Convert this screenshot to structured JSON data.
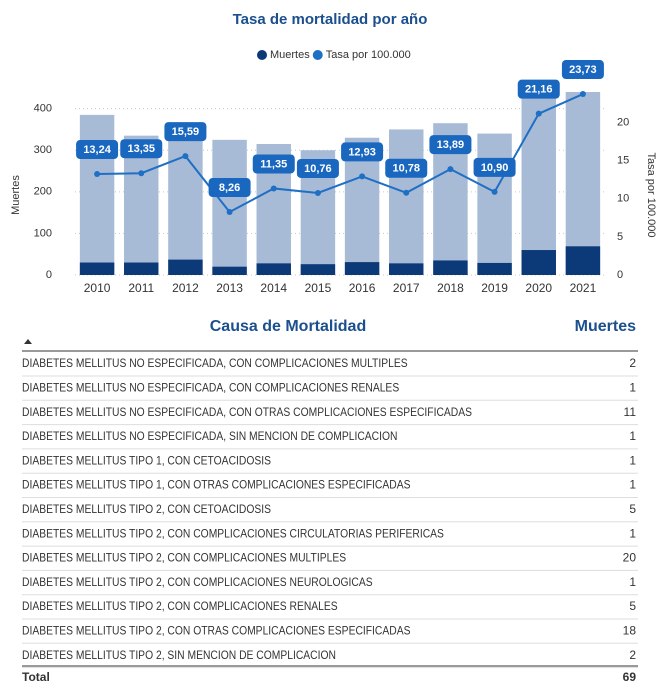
{
  "chart_data": {
    "type": "bar_line",
    "title": "Tasa de mortalidad por año",
    "categories": [
      "2010",
      "2011",
      "2012",
      "2013",
      "2014",
      "2015",
      "2016",
      "2017",
      "2018",
      "2019",
      "2020",
      "2021"
    ],
    "series": [
      {
        "color": "#a7bbd6",
        "values": [
          385,
          335,
          330,
          325,
          315,
          300,
          330,
          350,
          365,
          340,
          440,
          440
        ]
      },
      {
        "name": "Muertes",
        "color": "#0c3a78",
        "values": [
          30,
          30,
          37,
          20,
          28,
          26,
          31,
          28,
          35,
          29,
          60,
          69
        ]
      },
      {
        "name": "Tasa por 100.000",
        "color": "#1f6fc5",
        "axis": "y2",
        "values": [
          13.24,
          13.35,
          15.59,
          8.26,
          11.35,
          10.76,
          12.93,
          10.78,
          13.89,
          10.9,
          21.16,
          23.73
        ],
        "value_labels": [
          "13,24",
          "13,35",
          "15,59",
          "8,26",
          "11,35",
          "10,76",
          "12,93",
          "10,78",
          "13,89",
          "10,90",
          "21,16",
          "23,73"
        ]
      }
    ],
    "ylabel": "Muertes",
    "y2label": "Tasa por 100.000",
    "ylim": [
      0,
      440
    ],
    "yticks": [
      0,
      100,
      200,
      300,
      400
    ],
    "y2lim": [
      0,
      24
    ],
    "y2ticks": [
      0,
      5,
      10,
      15,
      20
    ],
    "grid": true
  },
  "table": {
    "header": [
      "Causa de Mortalidad",
      "Muertes"
    ],
    "rows": [
      [
        "DIABETES MELLITUS NO ESPECIFICADA, CON COMPLICACIONES MULTIPLES",
        "2"
      ],
      [
        "DIABETES MELLITUS NO ESPECIFICADA, CON COMPLICACIONES RENALES",
        "1"
      ],
      [
        "DIABETES MELLITUS NO ESPECIFICADA, CON OTRAS COMPLICACIONES ESPECIFICADAS",
        "11"
      ],
      [
        "DIABETES MELLITUS NO ESPECIFICADA, SIN MENCION DE COMPLICACION",
        "1"
      ],
      [
        "DIABETES MELLITUS TIPO 1, CON CETOACIDOSIS",
        "1"
      ],
      [
        "DIABETES MELLITUS TIPO 1, CON OTRAS COMPLICACIONES ESPECIFICADAS",
        "1"
      ],
      [
        "DIABETES MELLITUS TIPO 2, CON CETOACIDOSIS",
        "5"
      ],
      [
        "DIABETES MELLITUS TIPO 2, CON COMPLICACIONES CIRCULATORIAS PERIFERICAS",
        "1"
      ],
      [
        "DIABETES MELLITUS TIPO 2, CON COMPLICACIONES MULTIPLES",
        "20"
      ],
      [
        "DIABETES MELLITUS TIPO 2, CON COMPLICACIONES NEUROLOGICAS",
        "1"
      ],
      [
        "DIABETES MELLITUS TIPO 2, CON COMPLICACIONES RENALES",
        "5"
      ],
      [
        "DIABETES MELLITUS TIPO 2, CON OTRAS COMPLICACIONES ESPECIFICADAS",
        "18"
      ],
      [
        "DIABETES MELLITUS TIPO 2, SIN MENCION DE COMPLICACION",
        "2"
      ]
    ],
    "total": [
      "Total",
      "69"
    ]
  }
}
